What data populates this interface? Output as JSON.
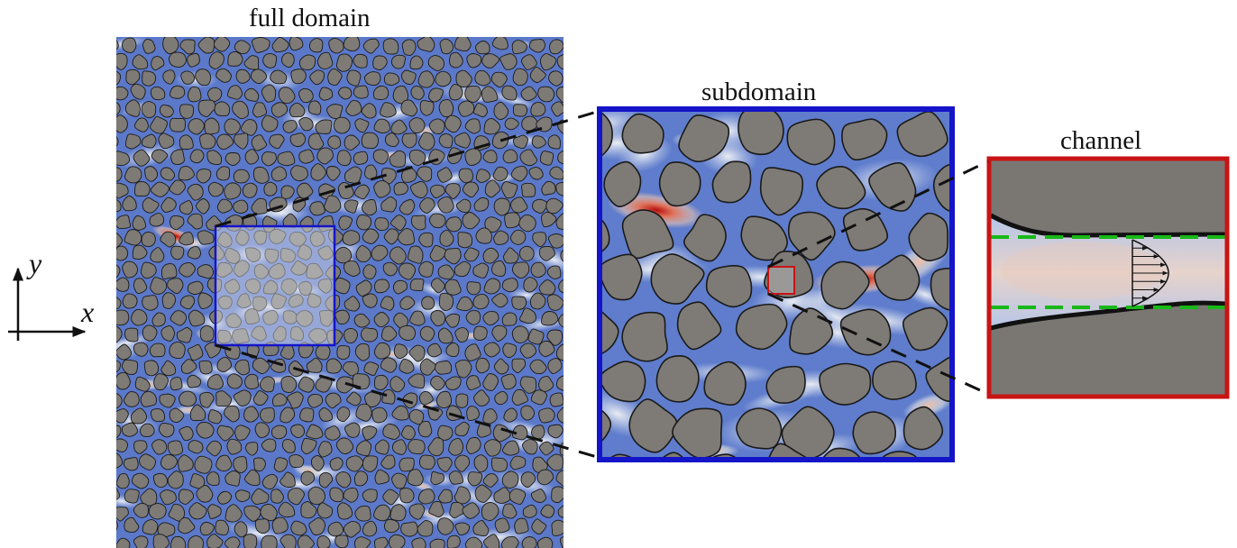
{
  "panels": {
    "full": {
      "title": "full domain"
    },
    "sub": {
      "title": "subdomain"
    },
    "channel": {
      "title": "channel"
    }
  },
  "axes": {
    "x": "x",
    "y": "y"
  },
  "colors": {
    "background_flow": "#5b78c9",
    "grain_fill": "#7e7a76",
    "grain_outline": "#1a1a1a",
    "subdomain_frame": "#1414c8",
    "channel_frame": "#c81414",
    "guide_line": "#18b818",
    "zoom_line": "#111111"
  }
}
